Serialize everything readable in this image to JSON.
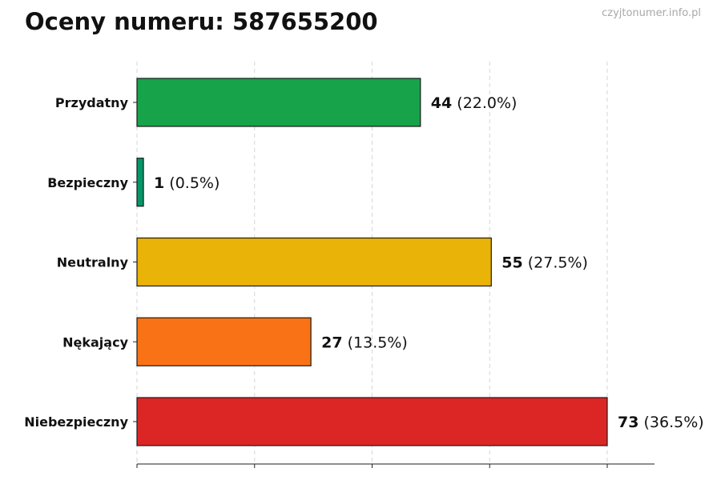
{
  "title": "Oceny numeru: 587655200",
  "watermark": "czyjtonumer.info.pl",
  "chart_data": {
    "type": "bar",
    "orientation": "horizontal",
    "categories": [
      "Przydatny",
      "Bezpieczny",
      "Neutralny",
      "Nękający",
      "Niebezpieczny"
    ],
    "values": [
      44,
      1,
      55,
      27,
      73
    ],
    "percent_labels": [
      "(22.0%)",
      "(0.5%)",
      "(27.5%)",
      "(13.5%)",
      "(36.5%)"
    ],
    "colors": [
      "#16a34a",
      "#059669",
      "#eab308",
      "#f97316",
      "#dc2626"
    ],
    "xlim": [
      0,
      80
    ],
    "x_gridlines": [
      0,
      18.25,
      36.5,
      54.75,
      73
    ],
    "grid": true,
    "xlabel": "",
    "ylabel": ""
  }
}
